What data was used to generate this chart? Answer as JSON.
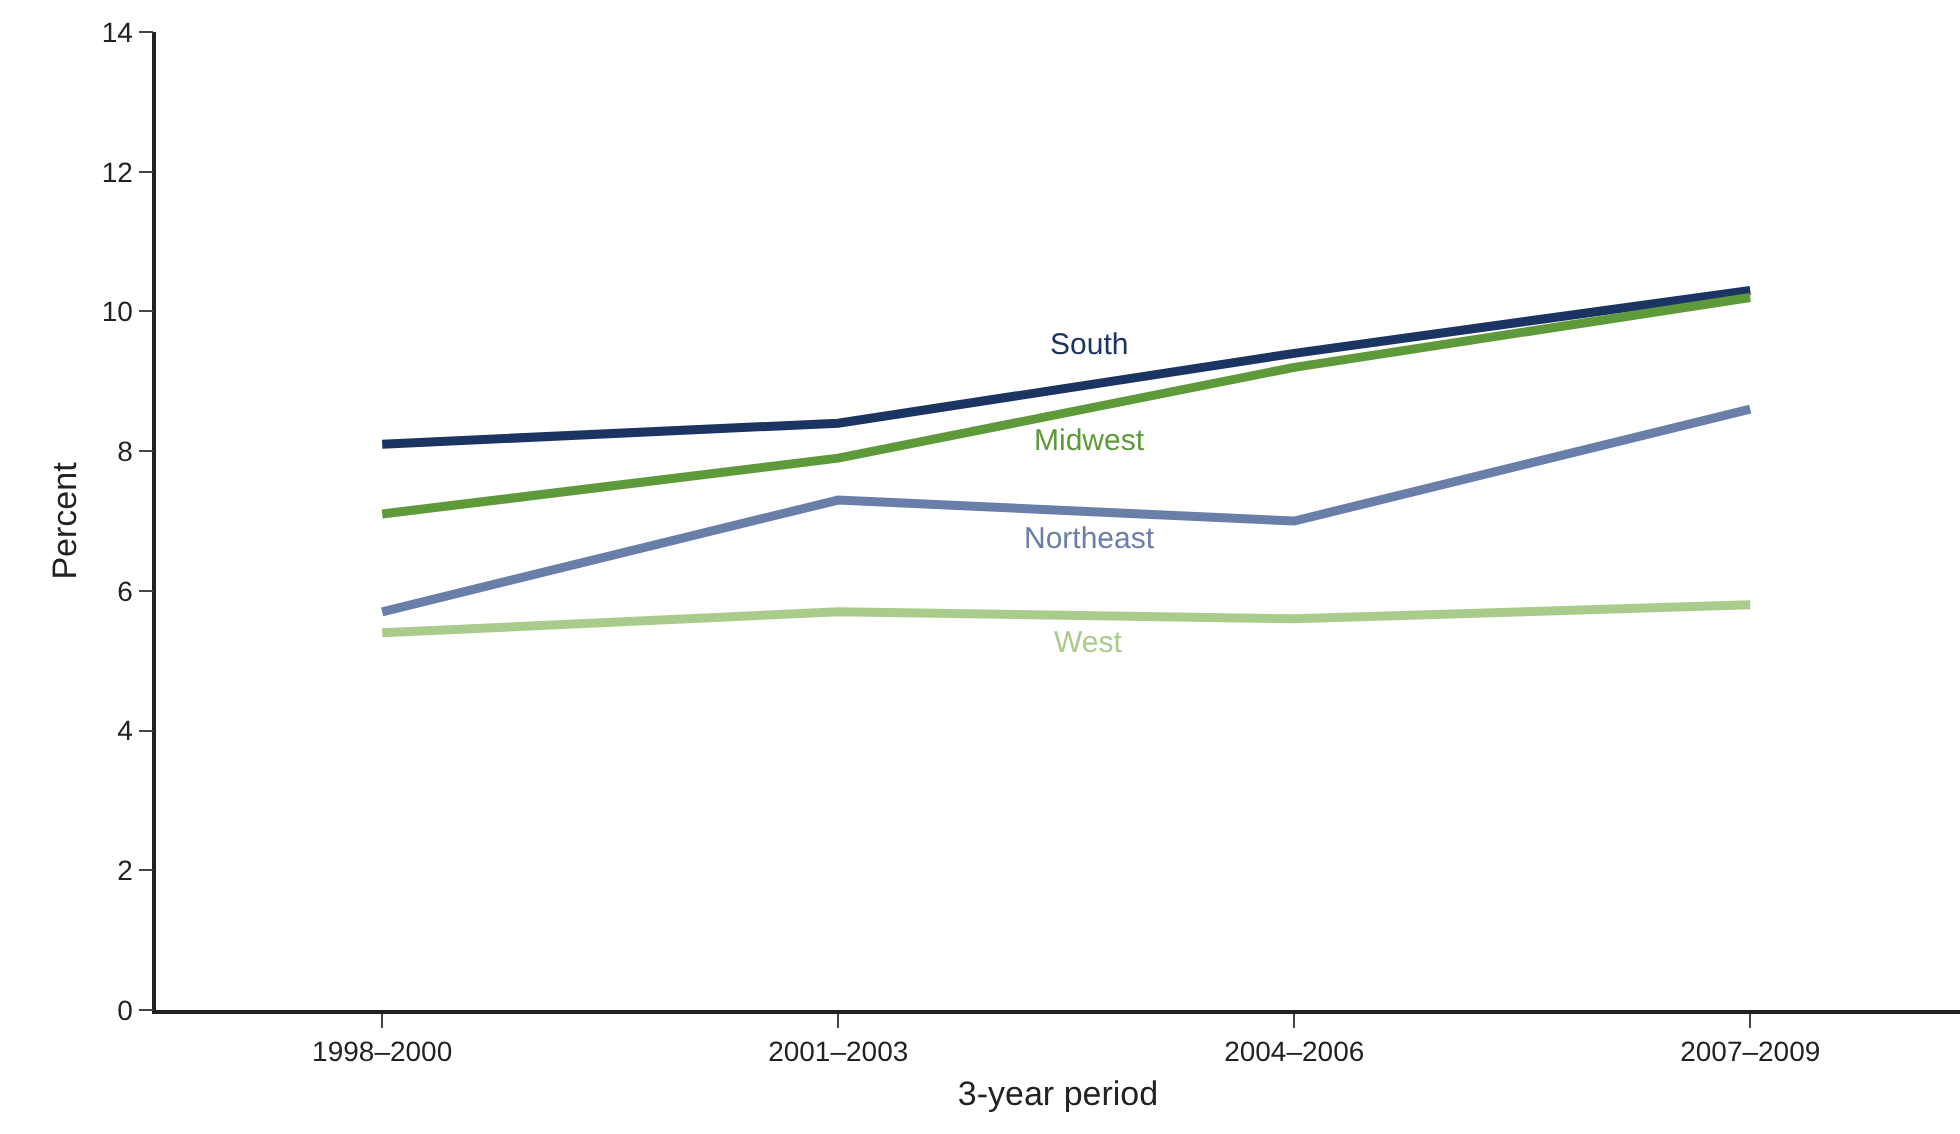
{
  "chart_data": {
    "type": "line",
    "xlabel": "3-year period",
    "ylabel": "Percent",
    "categories": [
      "1998–2000",
      "2001–2003",
      "2004–2006",
      "2007–2009"
    ],
    "series": [
      {
        "name": "South",
        "color": "#1b3461",
        "values": [
          8.1,
          8.4,
          9.4,
          10.3
        ]
      },
      {
        "name": "Midwest",
        "color": "#5e9a3a",
        "values": [
          7.1,
          7.9,
          9.2,
          10.2
        ]
      },
      {
        "name": "Northeast",
        "color": "#6a7eaa",
        "values": [
          5.7,
          7.3,
          7.0,
          8.6
        ]
      },
      {
        "name": "West",
        "color": "#a9cc8d",
        "values": [
          5.4,
          5.7,
          5.6,
          5.8
        ]
      }
    ],
    "ylim": [
      0,
      14
    ],
    "yticks": [
      0,
      2,
      4,
      6,
      8,
      10,
      12,
      14
    ],
    "legend": false,
    "marker": "none",
    "line_style": "solid"
  }
}
